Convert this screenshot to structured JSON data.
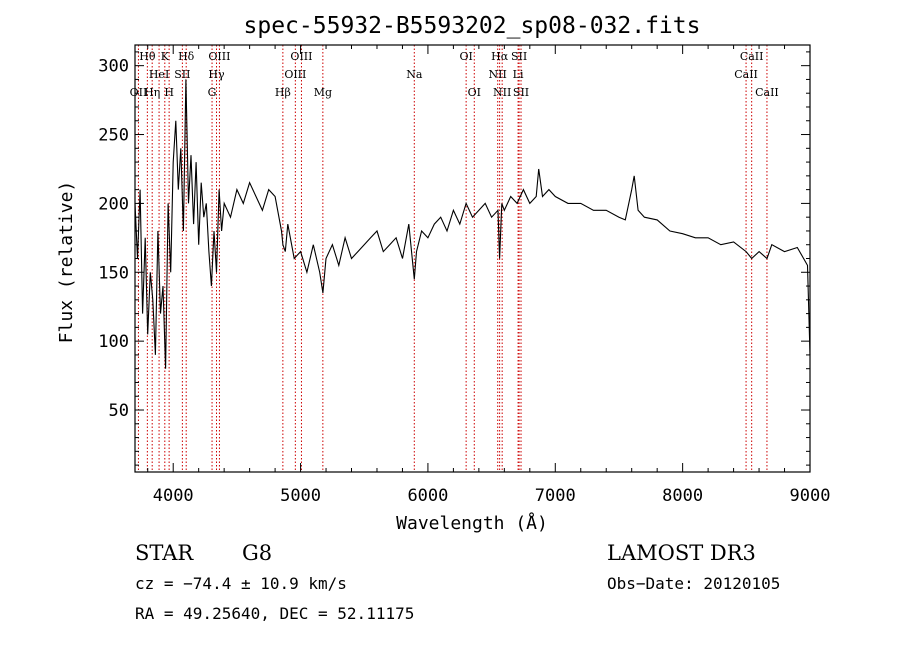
{
  "chart_data": {
    "type": "line",
    "title": "spec-55932-B5593202_sp08-032.fits",
    "xlabel": "Wavelength (Å)",
    "ylabel": "Flux (relative)",
    "xlim": [
      3700,
      9000
    ],
    "ylim": [
      5,
      315
    ],
    "x_ticks": [
      4000,
      5000,
      6000,
      7000,
      8000,
      9000
    ],
    "x_tick_labels": [
      "4000",
      "5000",
      "6000",
      "7000",
      "8000",
      "9000"
    ],
    "y_ticks": [
      50,
      100,
      150,
      200,
      250,
      300
    ],
    "y_tick_labels": [
      "50",
      "100",
      "150",
      "200",
      "250",
      "300"
    ],
    "series": [
      {
        "name": "flux",
        "x": [
          3700,
          3720,
          3740,
          3760,
          3780,
          3800,
          3820,
          3840,
          3860,
          3880,
          3900,
          3920,
          3940,
          3960,
          3980,
          4000,
          4020,
          4040,
          4060,
          4080,
          4100,
          4120,
          4140,
          4160,
          4180,
          4200,
          4220,
          4240,
          4260,
          4280,
          4300,
          4320,
          4340,
          4360,
          4380,
          4400,
          4450,
          4500,
          4550,
          4600,
          4650,
          4700,
          4750,
          4800,
          4850,
          4861,
          4880,
          4900,
          4950,
          5000,
          5050,
          5100,
          5150,
          5175,
          5200,
          5250,
          5300,
          5350,
          5400,
          5450,
          5500,
          5550,
          5600,
          5650,
          5700,
          5750,
          5800,
          5850,
          5893,
          5910,
          5950,
          6000,
          6050,
          6100,
          6150,
          6200,
          6250,
          6300,
          6350,
          6400,
          6450,
          6500,
          6550,
          6563,
          6580,
          6600,
          6650,
          6700,
          6750,
          6800,
          6850,
          6870,
          6900,
          6950,
          7000,
          7100,
          7200,
          7300,
          7400,
          7500,
          7550,
          7600,
          7620,
          7650,
          7700,
          7800,
          7900,
          8000,
          8100,
          8200,
          8300,
          8400,
          8498,
          8542,
          8600,
          8662,
          8700,
          8800,
          8900,
          8950,
          8980,
          9000
        ],
        "y": [
          200,
          160,
          210,
          120,
          175,
          105,
          150,
          130,
          90,
          180,
          120,
          140,
          80,
          200,
          150,
          230,
          260,
          210,
          240,
          180,
          290,
          200,
          235,
          185,
          230,
          170,
          215,
          190,
          200,
          165,
          140,
          180,
          150,
          210,
          180,
          200,
          190,
          210,
          200,
          215,
          205,
          195,
          210,
          205,
          180,
          170,
          165,
          185,
          160,
          165,
          150,
          170,
          150,
          135,
          160,
          170,
          155,
          175,
          160,
          165,
          170,
          175,
          180,
          165,
          170,
          175,
          160,
          185,
          145,
          165,
          180,
          175,
          185,
          190,
          180,
          195,
          185,
          200,
          190,
          195,
          200,
          190,
          195,
          160,
          200,
          195,
          205,
          200,
          210,
          200,
          205,
          225,
          205,
          210,
          205,
          200,
          200,
          195,
          195,
          190,
          188,
          210,
          220,
          195,
          190,
          188,
          180,
          178,
          175,
          175,
          170,
          172,
          165,
          160,
          165,
          160,
          170,
          165,
          168,
          160,
          155,
          90
        ]
      }
    ],
    "line_markers": [
      {
        "label": "OII",
        "x": 3727,
        "row": 2
      },
      {
        "label": "Hθ",
        "x": 3797,
        "row": 0
      },
      {
        "label": "Hη",
        "x": 3835,
        "row": 2
      },
      {
        "label": "HeI",
        "x": 3889,
        "row": 1
      },
      {
        "label": "K",
        "x": 3934,
        "row": 0
      },
      {
        "label": "SII",
        "x": 4072,
        "row": 1
      },
      {
        "label": "H",
        "x": 3968,
        "row": 2
      },
      {
        "label": "Hδ",
        "x": 4102,
        "row": 0
      },
      {
        "label": "OIII",
        "x": 4363,
        "row": 0
      },
      {
        "label": "Hγ",
        "x": 4340,
        "row": 1
      },
      {
        "label": "G",
        "x": 4305,
        "row": 2
      },
      {
        "label": "Hβ",
        "x": 4861,
        "row": 2
      },
      {
        "label": "OIII",
        "x": 5007,
        "row": 0
      },
      {
        "label": "OIII",
        "x": 4959,
        "row": 1
      },
      {
        "label": "Mg",
        "x": 5175,
        "row": 2
      },
      {
        "label": "Na",
        "x": 5893,
        "row": 1
      },
      {
        "label": "OI",
        "x": 6300,
        "row": 0
      },
      {
        "label": "OI",
        "x": 6364,
        "row": 2
      },
      {
        "label": "Hα",
        "x": 6563,
        "row": 0
      },
      {
        "label": "NII",
        "x": 6548,
        "row": 1
      },
      {
        "label": "NII",
        "x": 6583,
        "row": 2
      },
      {
        "label": "SII",
        "x": 6716,
        "row": 0
      },
      {
        "label": "Li",
        "x": 6708,
        "row": 1
      },
      {
        "label": "SII",
        "x": 6731,
        "row": 2
      },
      {
        "label": "CaII",
        "x": 8542,
        "row": 0
      },
      {
        "label": "CaII",
        "x": 8498,
        "row": 1
      },
      {
        "label": "CaII",
        "x": 8662,
        "row": 2
      }
    ],
    "grid": false,
    "legend": "none"
  },
  "info": {
    "object_class": "STAR",
    "subclass": "G8",
    "survey": "LAMOST DR3",
    "cz": "cz = −74.4 ± 10.9 km/s",
    "obs_date": "Obs−Date: 20120105",
    "coords": "RA =  49.25640, DEC =  52.11175"
  },
  "colors": {
    "spectrum": "#000000",
    "marker_line": "#cc0000",
    "background": "#ffffff"
  }
}
